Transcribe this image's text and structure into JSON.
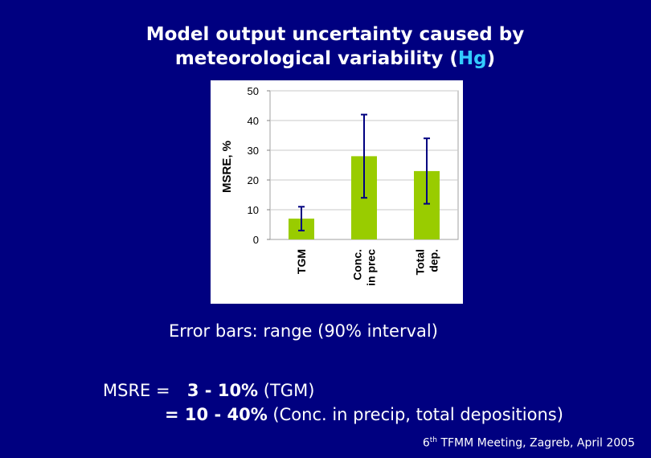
{
  "title": {
    "line1": "Model output uncertainty caused by",
    "line2_prefix": "meteorological variability  (",
    "line2_highlight": "Hg",
    "line2_suffix": ")"
  },
  "chart_data": {
    "type": "bar",
    "categories": [
      [
        "TGM"
      ],
      [
        "Conc.",
        "in prec"
      ],
      [
        "Total",
        "dep."
      ]
    ],
    "values": [
      7,
      28,
      23
    ],
    "error_low": [
      3,
      14,
      12
    ],
    "error_high": [
      11,
      42,
      34
    ],
    "ylabel": "MSRE, %",
    "ylim": [
      0,
      50
    ],
    "yticks": [
      "0",
      "10",
      "20",
      "30",
      "40",
      "50"
    ],
    "bar_color": "#99cc00",
    "error_color": "#000080",
    "grid": true
  },
  "caption": "Error bars: range (90% interval)",
  "msre": {
    "line1_label": "MSRE = ",
    "line1_value": "  3 - 10%",
    "line1_note": " (TGM)",
    "line2_label": "= ",
    "line2_value": "10 - 40%",
    "line2_note": " (Conc. in precip, total depositions)"
  },
  "footer": {
    "ordinal_number": "6",
    "ordinal_suffix": "th",
    "text": " TFMM Meeting, Zagreb, April 2005"
  }
}
